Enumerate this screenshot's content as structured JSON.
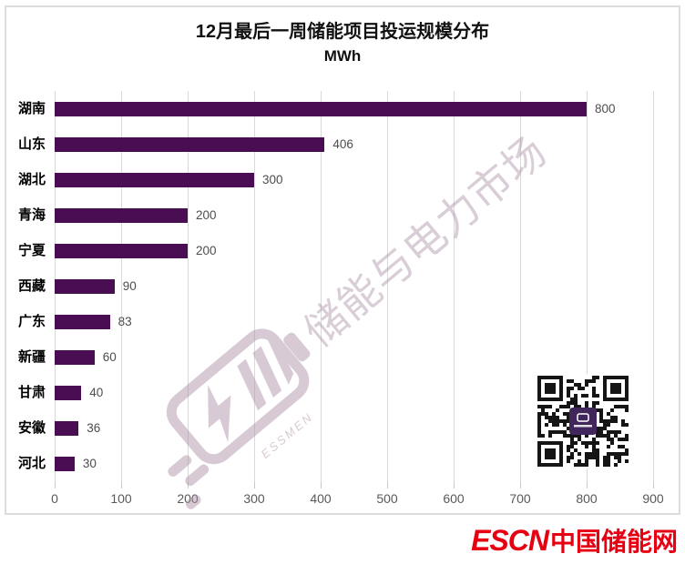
{
  "chart_data": {
    "type": "bar",
    "orientation": "horizontal",
    "title": "12月最后一周储能项目投运规模分布",
    "subtitle": "MWh",
    "categories": [
      "湖南",
      "山东",
      "湖北",
      "青海",
      "宁夏",
      "西藏",
      "广东",
      "新疆",
      "甘肃",
      "安徽",
      "河北"
    ],
    "values": [
      800,
      406,
      300,
      200,
      200,
      90,
      83,
      60,
      40,
      36,
      30
    ],
    "xlim": [
      0,
      900
    ],
    "xticks": [
      "0",
      "100",
      "200",
      "300",
      "400",
      "500",
      "600",
      "700",
      "800",
      "900"
    ],
    "grid": "vertical-only",
    "legend": "none",
    "data_labels": "outside-end"
  },
  "watermark": {
    "text": "储能与电力市场",
    "brand": "ESSMEN"
  },
  "footer": {
    "logo_en": "ESCN",
    "logo_zh": "中国储能网"
  },
  "icons": {
    "qr_code": "qr-code",
    "battery_logo": "battery-lightning-logo"
  },
  "colors": {
    "bar": "#4A0D53",
    "grid": "#D9D9D9",
    "axis_text": "#595959",
    "value_text": "#4D4D4D",
    "category_text": "#000000",
    "watermark": "#A78CA2",
    "logo_red": "#E60012",
    "qr_center": "#40265A",
    "chart_border": "#DCDCDC"
  }
}
